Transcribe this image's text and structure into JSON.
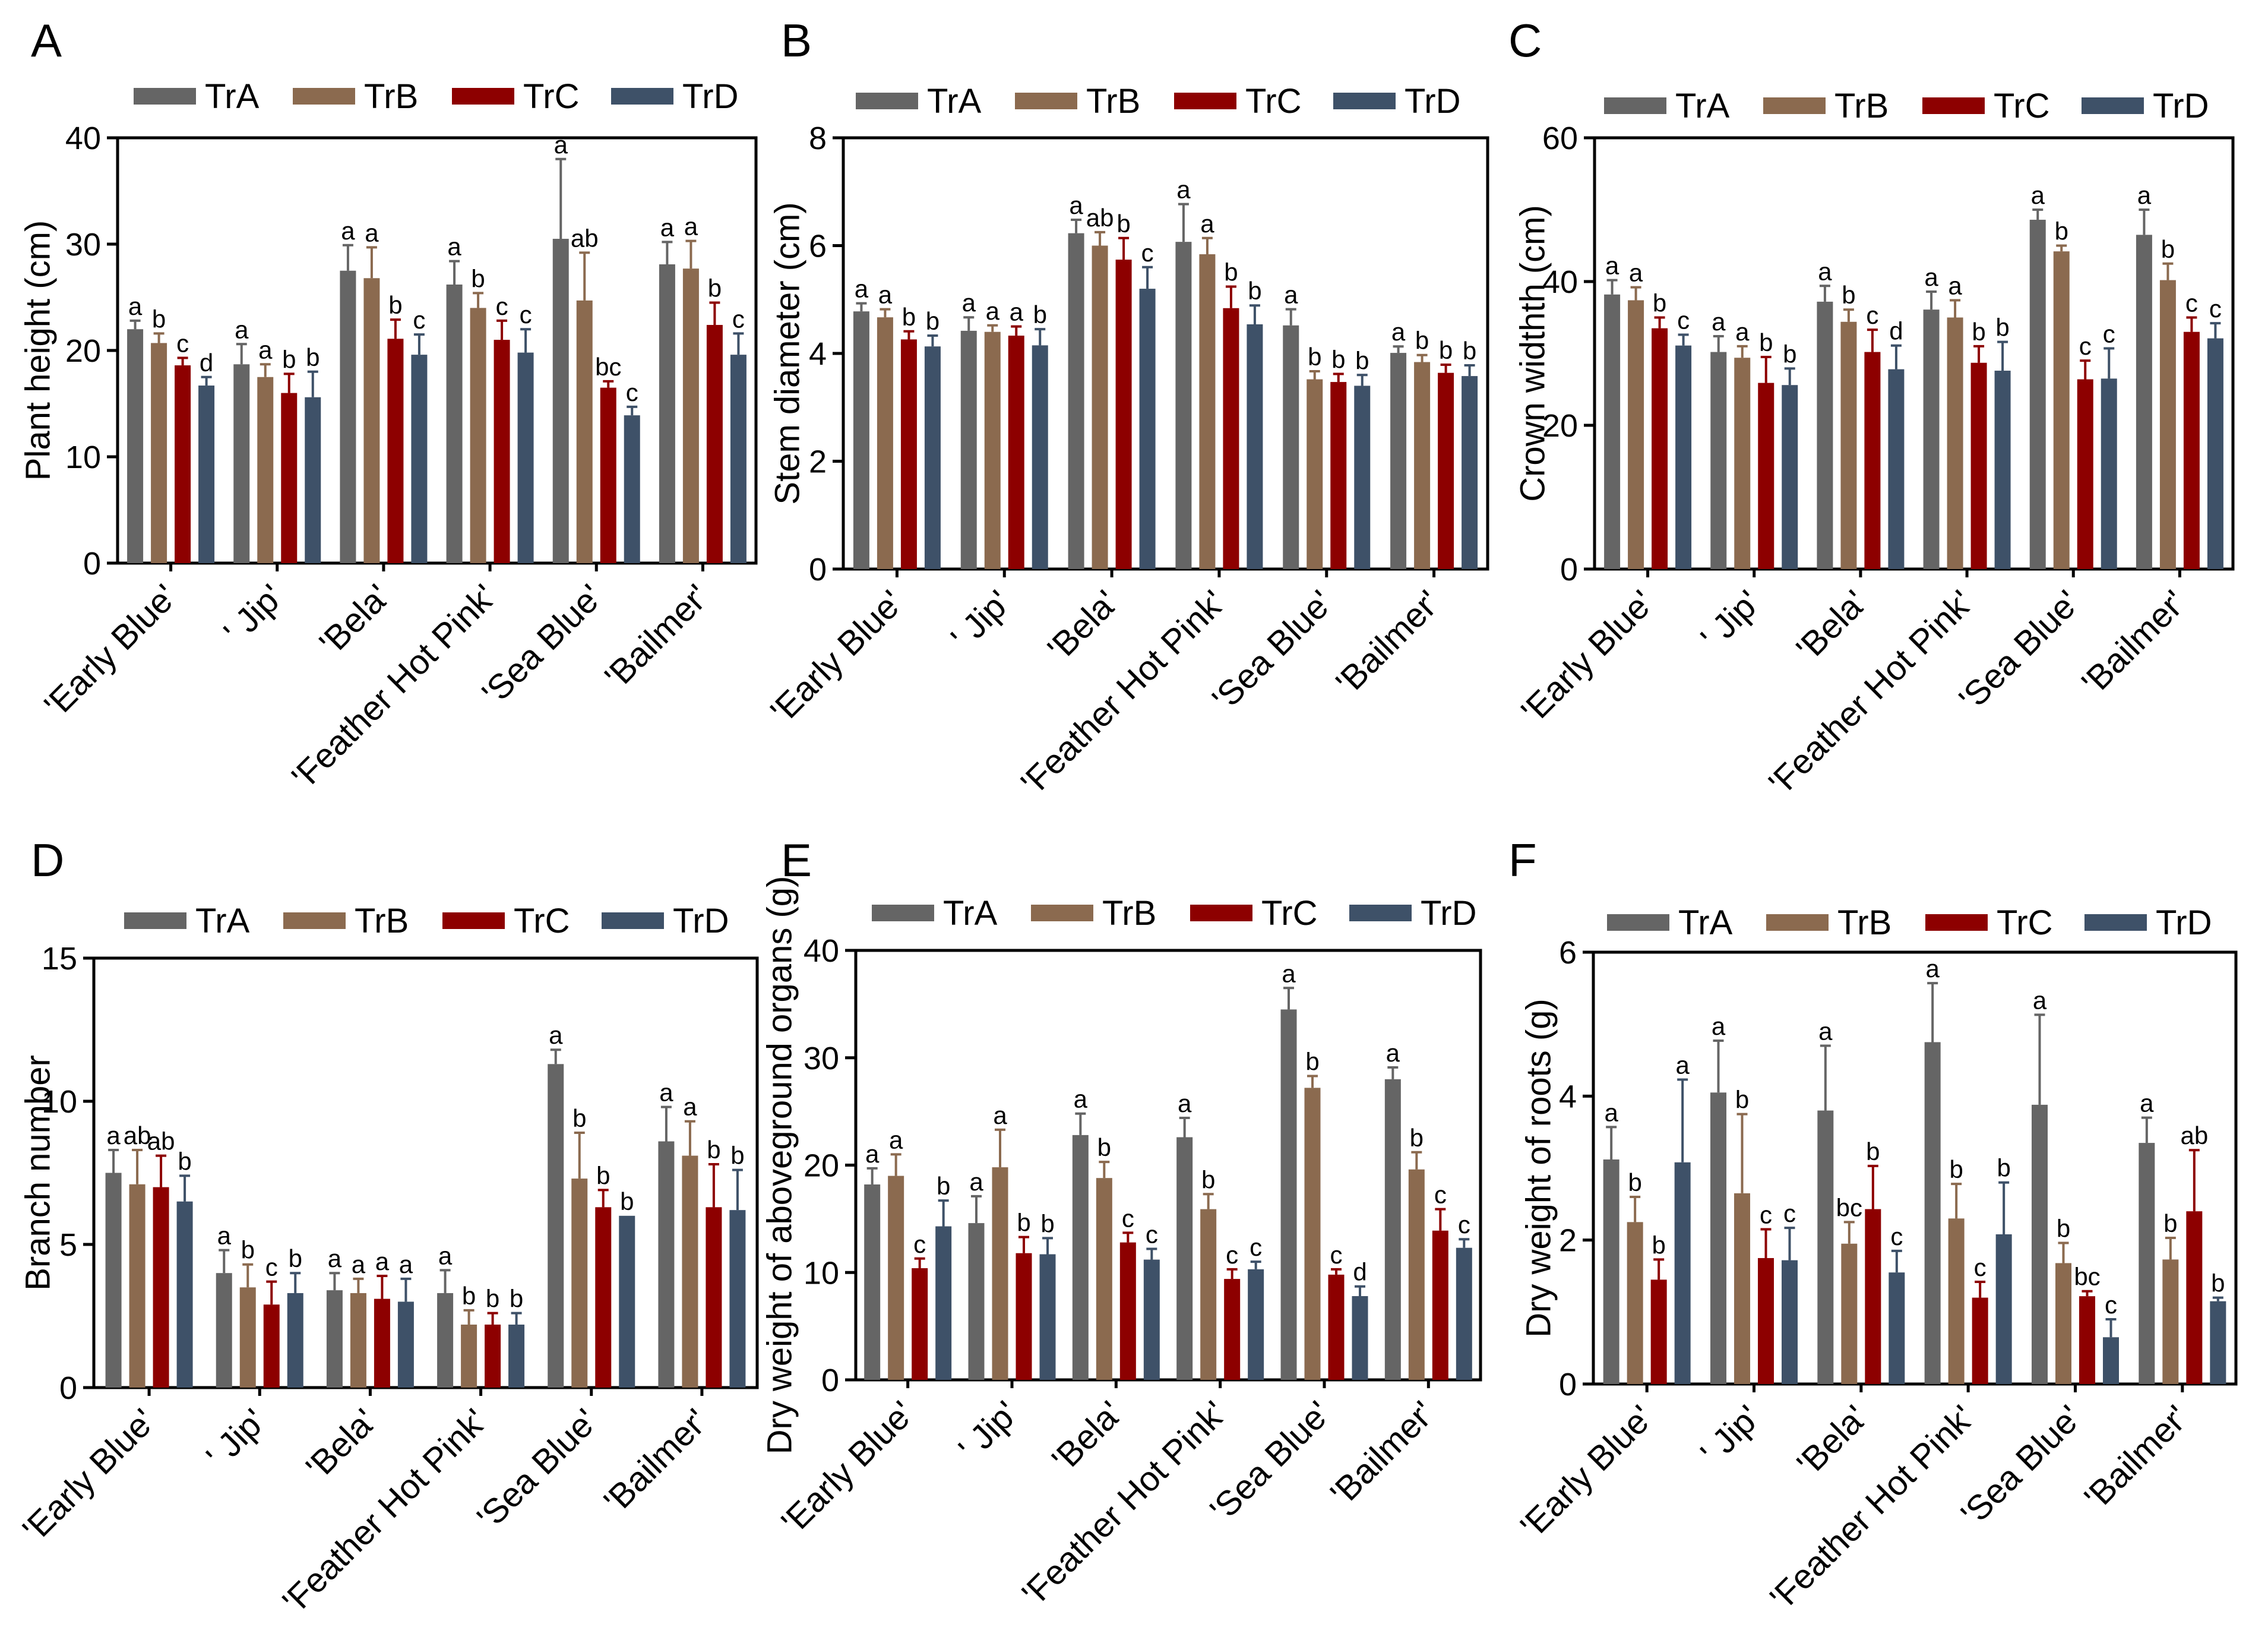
{
  "chart_data": [
    {
      "type": "bar",
      "panel": "A",
      "ylabel": "Plant height (cm)",
      "ylim": [
        0,
        40
      ],
      "yticks": [
        0,
        10,
        20,
        30,
        40
      ],
      "categories": [
        "'Early Blue'",
        "' Jip'",
        "'Bela'",
        "'Feather Hot Pink'",
        "'Sea Blue'",
        "'Bailmer'"
      ],
      "series": [
        {
          "name": "TrA",
          "values": [
            22.0,
            18.7,
            27.5,
            26.2,
            30.5,
            28.1
          ],
          "errors": [
            0.8,
            1.9,
            2.4,
            2.2,
            7.5,
            2.1
          ],
          "letters": [
            "a",
            "a",
            "a",
            "a",
            "a",
            "a"
          ]
        },
        {
          "name": "TrB",
          "values": [
            20.7,
            17.5,
            26.8,
            24.0,
            24.7,
            27.7
          ],
          "errors": [
            0.9,
            1.2,
            2.9,
            1.4,
            4.5,
            2.6
          ],
          "letters": [
            "b",
            "a",
            "a",
            "b",
            "ab",
            "a"
          ]
        },
        {
          "name": "TrC",
          "values": [
            18.6,
            16.0,
            21.1,
            21.0,
            16.5,
            22.4
          ],
          "errors": [
            0.7,
            1.8,
            1.8,
            1.8,
            0.6,
            2.1
          ],
          "letters": [
            "c",
            "b",
            "b",
            "c",
            "bc",
            "b"
          ]
        },
        {
          "name": "TrD",
          "values": [
            16.7,
            15.6,
            19.6,
            19.8,
            13.9,
            19.6
          ],
          "errors": [
            0.8,
            2.4,
            1.9,
            2.2,
            0.8,
            2.0
          ],
          "letters": [
            "d",
            "b",
            "c",
            "c",
            "c",
            "c"
          ]
        }
      ]
    },
    {
      "type": "bar",
      "panel": "B",
      "ylabel": "Stem diameter  (cm)",
      "ylim": [
        0,
        8
      ],
      "yticks": [
        0,
        2,
        4,
        6,
        8
      ],
      "categories": [
        "'Early Blue'",
        "' Jip'",
        "'Bela'",
        "'Feather Hot Pink'",
        "'Sea Blue'",
        "'Bailmer'"
      ],
      "series": [
        {
          "name": "TrA",
          "values": [
            4.78,
            4.42,
            6.23,
            6.07,
            4.52,
            4.01
          ],
          "errors": [
            0.15,
            0.25,
            0.25,
            0.7,
            0.3,
            0.12
          ],
          "letters": [
            "a",
            "a",
            "a",
            "a",
            "a",
            "a"
          ]
        },
        {
          "name": "TrB",
          "values": [
            4.67,
            4.4,
            6.0,
            5.84,
            3.52,
            3.84
          ],
          "errors": [
            0.15,
            0.12,
            0.25,
            0.3,
            0.15,
            0.13
          ],
          "letters": [
            "a",
            "a",
            "ab",
            "a",
            "b",
            "b"
          ]
        },
        {
          "name": "TrC",
          "values": [
            4.26,
            4.33,
            5.74,
            4.84,
            3.47,
            3.64
          ],
          "errors": [
            0.15,
            0.17,
            0.4,
            0.4,
            0.15,
            0.15
          ],
          "letters": [
            "b",
            "a",
            "b",
            "b",
            "b",
            "b"
          ]
        },
        {
          "name": "TrD",
          "values": [
            4.13,
            4.15,
            5.2,
            4.54,
            3.4,
            3.58
          ],
          "errors": [
            0.2,
            0.3,
            0.4,
            0.35,
            0.2,
            0.2
          ],
          "letters": [
            "b",
            "b",
            "c",
            "b",
            "b",
            "b"
          ]
        }
      ]
    },
    {
      "type": "bar",
      "panel": "C",
      "ylabel": "Crown widthth (cm)",
      "ylim": [
        0,
        60
      ],
      "yticks": [
        0,
        20,
        40,
        60
      ],
      "categories": [
        "'Early Blue'",
        "' Jip'",
        "'Bela'",
        "'Feather Hot Pink'",
        "'Sea Blue'",
        "'Bailmer'"
      ],
      "series": [
        {
          "name": "TrA",
          "values": [
            38.2,
            30.2,
            37.2,
            36.1,
            48.6,
            46.5
          ],
          "errors": [
            2.0,
            2.2,
            2.2,
            2.5,
            1.4,
            3.5
          ],
          "letters": [
            "a",
            "a",
            "a",
            "a",
            "a",
            "a"
          ]
        },
        {
          "name": "TrB",
          "values": [
            37.4,
            29.4,
            34.4,
            35.0,
            44.2,
            40.2
          ],
          "errors": [
            1.8,
            1.6,
            1.7,
            2.4,
            0.8,
            2.3
          ],
          "letters": [
            "a",
            "a",
            "b",
            "a",
            "b",
            "b"
          ]
        },
        {
          "name": "TrC",
          "values": [
            33.5,
            25.9,
            30.2,
            28.7,
            26.4,
            33.0
          ],
          "errors": [
            1.5,
            3.6,
            3.1,
            2.3,
            2.6,
            2.0
          ],
          "letters": [
            "b",
            "b",
            "c",
            "b",
            "c",
            "c"
          ]
        },
        {
          "name": "TrD",
          "values": [
            31.1,
            25.6,
            27.8,
            27.6,
            26.5,
            32.1
          ],
          "errors": [
            1.5,
            2.3,
            3.3,
            4.0,
            4.2,
            2.1
          ],
          "letters": [
            "c",
            "b",
            "d",
            "b",
            "c",
            "c"
          ]
        }
      ]
    },
    {
      "type": "bar",
      "panel": "D",
      "ylabel": "Branch number",
      "ylim": [
        0,
        15
      ],
      "yticks": [
        0,
        5,
        10,
        15
      ],
      "categories": [
        "'Early Blue'",
        "' Jip'",
        "'Bela'",
        "'Feather Hot Pink'",
        "'Sea Blue'",
        "'Bailmer'"
      ],
      "series": [
        {
          "name": "TrA",
          "values": [
            7.5,
            4.0,
            3.4,
            3.3,
            11.3,
            8.6
          ],
          "errors": [
            0.8,
            0.8,
            0.6,
            0.8,
            0.5,
            1.2
          ],
          "letters": [
            "a",
            "a",
            "a",
            "a",
            "a",
            "a"
          ]
        },
        {
          "name": "TrB",
          "values": [
            7.1,
            3.5,
            3.3,
            2.2,
            7.3,
            8.1
          ],
          "errors": [
            1.2,
            0.8,
            0.5,
            0.5,
            1.6,
            1.2
          ],
          "letters": [
            "ab",
            "b",
            "a",
            "b",
            "b",
            "a"
          ]
        },
        {
          "name": "TrC",
          "values": [
            7.0,
            2.9,
            3.1,
            2.2,
            6.3,
            6.3
          ],
          "errors": [
            1.1,
            0.8,
            0.8,
            0.4,
            0.6,
            1.5
          ],
          "letters": [
            "ab",
            "c",
            "a",
            "b",
            "b",
            "b"
          ]
        },
        {
          "name": "TrD",
          "values": [
            6.5,
            3.3,
            3.0,
            2.2,
            6.0,
            6.2
          ],
          "errors": [
            0.9,
            0.7,
            0.8,
            0.4,
            0.0,
            1.4
          ],
          "letters": [
            "b",
            "b",
            "a",
            "b",
            "b",
            "b"
          ]
        }
      ]
    },
    {
      "type": "bar",
      "panel": "E",
      "ylabel": "Dry weight of aboveground organs (g)",
      "ylim": [
        0,
        40
      ],
      "yticks": [
        0,
        10,
        20,
        30,
        40
      ],
      "categories": [
        "'Early Blue'",
        "' Jip'",
        "'Bela'",
        "'Feather Hot Pink'",
        "'Sea Blue'",
        "'Bailmer'"
      ],
      "series": [
        {
          "name": "TrA",
          "values": [
            18.2,
            14.6,
            22.8,
            22.6,
            34.5,
            28.0
          ],
          "errors": [
            1.5,
            2.5,
            2.0,
            1.8,
            2.0,
            1.1
          ],
          "letters": [
            "a",
            "a",
            "a",
            "a",
            "a",
            "a"
          ]
        },
        {
          "name": "TrB",
          "values": [
            19.0,
            19.8,
            18.8,
            15.9,
            27.2,
            19.6
          ],
          "errors": [
            2.0,
            3.5,
            1.5,
            1.4,
            1.1,
            1.6
          ],
          "letters": [
            "a",
            "a",
            "b",
            "b",
            "b",
            "b"
          ]
        },
        {
          "name": "TrC",
          "values": [
            10.4,
            11.8,
            12.8,
            9.4,
            9.8,
            13.9
          ],
          "errors": [
            0.9,
            1.5,
            0.9,
            0.9,
            0.5,
            2.0
          ],
          "letters": [
            "c",
            "b",
            "c",
            "c",
            "c",
            "c"
          ]
        },
        {
          "name": "TrD",
          "values": [
            14.3,
            11.7,
            11.2,
            10.3,
            7.8,
            12.3
          ],
          "errors": [
            2.4,
            1.5,
            1.0,
            0.7,
            0.9,
            0.8
          ],
          "letters": [
            "b",
            "b",
            "c",
            "c",
            "d",
            "c"
          ]
        }
      ]
    },
    {
      "type": "bar",
      "panel": "F",
      "ylabel": "Dry weight of roots (g)",
      "ylim": [
        0,
        6
      ],
      "yticks": [
        0,
        2,
        4,
        6
      ],
      "categories": [
        "'Early Blue'",
        "' Jip'",
        "'Bela'",
        "'Feather Hot Pink'",
        "'Sea Blue'",
        "'Bailmer'"
      ],
      "series": [
        {
          "name": "TrA",
          "values": [
            3.12,
            4.05,
            3.8,
            4.75,
            3.88,
            3.35
          ],
          "errors": [
            0.45,
            0.72,
            0.9,
            0.82,
            1.25,
            0.35
          ],
          "letters": [
            "a",
            "a",
            "a",
            "a",
            "a",
            "a"
          ]
        },
        {
          "name": "TrB",
          "values": [
            2.25,
            2.65,
            1.95,
            2.3,
            1.68,
            1.73
          ],
          "errors": [
            0.35,
            1.1,
            0.3,
            0.48,
            0.28,
            0.3
          ],
          "letters": [
            "b",
            "b",
            "bc",
            "b",
            "b",
            "b"
          ]
        },
        {
          "name": "TrC",
          "values": [
            1.45,
            1.75,
            2.43,
            1.2,
            1.22,
            2.4
          ],
          "errors": [
            0.28,
            0.4,
            0.6,
            0.22,
            0.07,
            0.85
          ],
          "letters": [
            "b",
            "c",
            "b",
            "c",
            "bc",
            "ab"
          ]
        },
        {
          "name": "TrD",
          "values": [
            3.08,
            1.72,
            1.55,
            2.08,
            0.65,
            1.15
          ],
          "errors": [
            1.15,
            0.45,
            0.3,
            0.72,
            0.25,
            0.05
          ],
          "letters": [
            "a",
            "c",
            "c",
            "b",
            "c",
            "b"
          ]
        }
      ]
    }
  ],
  "colors": {
    "TrA": "#656565",
    "TrB": "#8b6a4f",
    "TrC": "#8d0000",
    "TrD": "#3e5168",
    "axis": "#000000"
  }
}
